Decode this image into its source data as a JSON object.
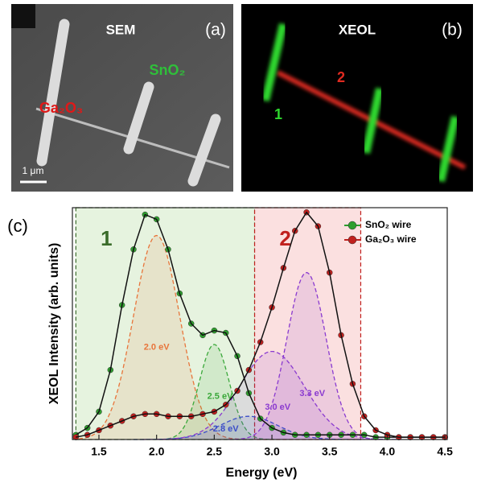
{
  "panels": {
    "a": {
      "title": "SEM",
      "label": "(a)",
      "material_1": "SnO₂",
      "material_2": "Ga₂O₃",
      "scale_bar": "1 μm"
    },
    "b": {
      "title": "XEOL",
      "label": "(b)",
      "wire_1": "1",
      "wire_2": "2"
    }
  },
  "chart_data": {
    "type": "line",
    "panel_label": "(c)",
    "xlabel": "Energy (eV)",
    "ylabel": "XEOL Intensity (arb. units)",
    "xlim": [
      1.27,
      4.52
    ],
    "ylim": [
      0,
      1
    ],
    "xticks": [
      1.5,
      {
        "value": 2.0,
        "label": "2.0"
      },
      2.5,
      {
        "value": 3.0,
        "label": "3.0"
      },
      3.5,
      {
        "value": 4.0,
        "label": "4.0"
      },
      4.5
    ],
    "x": [
      1.3,
      1.4,
      1.5,
      1.6,
      1.7,
      1.8,
      1.9,
      2.0,
      2.1,
      2.2,
      2.3,
      2.4,
      2.5,
      2.6,
      2.7,
      2.8,
      2.9,
      3.0,
      3.1,
      3.2,
      3.3,
      3.4,
      3.5,
      3.6,
      3.7,
      3.8,
      3.9,
      4.0,
      4.1,
      4.2,
      4.3,
      4.4,
      4.5
    ],
    "series": [
      {
        "name": "SnO₂ wire",
        "color": "#2e9e2e",
        "values": [
          0.02,
          0.05,
          0.12,
          0.3,
          0.58,
          0.82,
          0.97,
          0.95,
          0.82,
          0.63,
          0.5,
          0.45,
          0.47,
          0.46,
          0.36,
          0.2,
          0.09,
          0.05,
          0.03,
          0.02,
          0.02,
          0.02,
          0.02,
          0.02,
          0.02,
          0.02,
          0.01,
          0.01,
          0.01,
          0.01,
          0.01,
          0.01,
          0.01
        ]
      },
      {
        "name": "Ga₂O₃ wire",
        "color": "#c0201e",
        "values": [
          0.01,
          0.02,
          0.04,
          0.06,
          0.08,
          0.1,
          0.11,
          0.11,
          0.1,
          0.1,
          0.1,
          0.11,
          0.12,
          0.15,
          0.21,
          0.3,
          0.42,
          0.57,
          0.74,
          0.9,
          0.98,
          0.92,
          0.72,
          0.45,
          0.24,
          0.1,
          0.04,
          0.02,
          0.01,
          0.01,
          0.01,
          0.01,
          0.01
        ]
      }
    ],
    "fits": [
      {
        "label": "2.0 eV",
        "center": 2.0,
        "amplitude": 0.88,
        "sigma": 0.2,
        "color": "#e8743a"
      },
      {
        "label": "2.5 eV",
        "center": 2.5,
        "amplitude": 0.41,
        "sigma": 0.13,
        "color": "#3aa83a"
      },
      {
        "label": "2.8 eV",
        "center": 2.8,
        "amplitude": 0.1,
        "sigma": 0.25,
        "color": "#3050c8"
      },
      {
        "label": "3.0 eV",
        "center": 3.0,
        "amplitude": 0.38,
        "sigma": 0.28,
        "color": "#8a3ad0"
      },
      {
        "label": "3.3 eV",
        "center": 3.3,
        "amplitude": 0.72,
        "sigma": 0.17,
        "color": "#8a3ad0"
      }
    ],
    "regions": [
      {
        "label": "1",
        "from": 1.3,
        "to": 2.85,
        "color": "#3a6b2a",
        "fill": "#e6f3df"
      },
      {
        "label": "2",
        "from": 2.85,
        "to": 3.77,
        "color": "#c0201e",
        "fill": "#fbe0e0"
      }
    ],
    "legend": "upper right"
  }
}
